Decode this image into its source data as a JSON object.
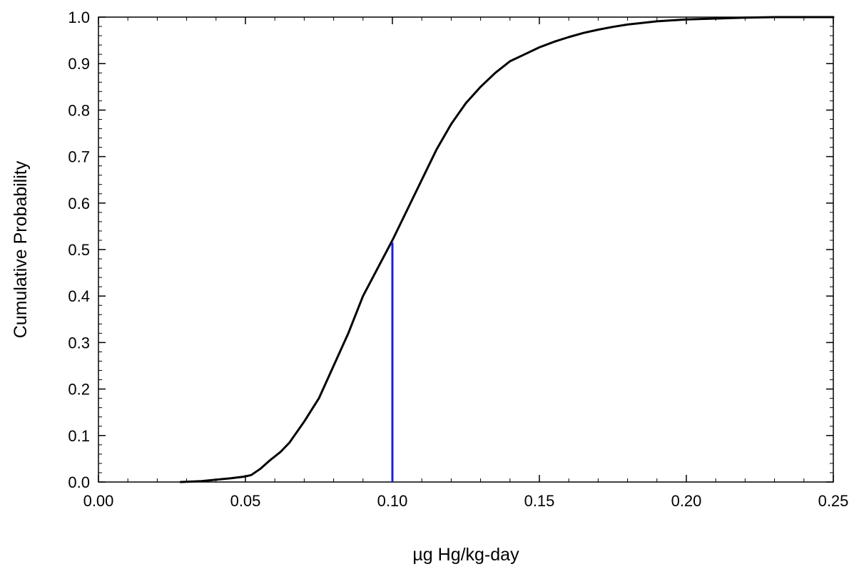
{
  "chart_data": {
    "type": "line",
    "title": "",
    "xlabel": "µg Hg/kg-day",
    "ylabel": "Cumulative Probability",
    "xlim": [
      0.0,
      0.25
    ],
    "ylim": [
      0.0,
      1.0
    ],
    "grid": false,
    "legend": "none",
    "x_ticks": [
      "0.00",
      "0.05",
      "0.10",
      "0.15",
      "0.20",
      "0.25"
    ],
    "y_ticks": [
      "0.0",
      "0.1",
      "0.2",
      "0.3",
      "0.4",
      "0.5",
      "0.6",
      "0.7",
      "0.8",
      "0.9",
      "1.0"
    ],
    "series": [
      {
        "color": "#000000",
        "x": [
          0.028,
          0.035,
          0.04,
          0.045,
          0.05,
          0.052,
          0.055,
          0.058,
          0.062,
          0.065,
          0.07,
          0.075,
          0.08,
          0.085,
          0.09,
          0.095,
          0.1,
          0.105,
          0.11,
          0.115,
          0.12,
          0.125,
          0.13,
          0.135,
          0.14,
          0.145,
          0.15,
          0.155,
          0.16,
          0.165,
          0.17,
          0.175,
          0.18,
          0.19,
          0.2,
          0.21,
          0.22,
          0.23,
          0.24,
          0.25
        ],
        "y": [
          0.0,
          0.002,
          0.005,
          0.008,
          0.012,
          0.015,
          0.028,
          0.045,
          0.065,
          0.085,
          0.13,
          0.18,
          0.25,
          0.32,
          0.4,
          0.46,
          0.52,
          0.585,
          0.65,
          0.715,
          0.77,
          0.815,
          0.85,
          0.88,
          0.905,
          0.92,
          0.935,
          0.947,
          0.957,
          0.966,
          0.973,
          0.979,
          0.984,
          0.991,
          0.995,
          0.997,
          0.999,
          1.0,
          1.0,
          1.0
        ]
      }
    ],
    "reference_line": {
      "color": "#1f1fe0",
      "x": 0.1,
      "y": [
        0.0,
        0.515
      ]
    }
  }
}
